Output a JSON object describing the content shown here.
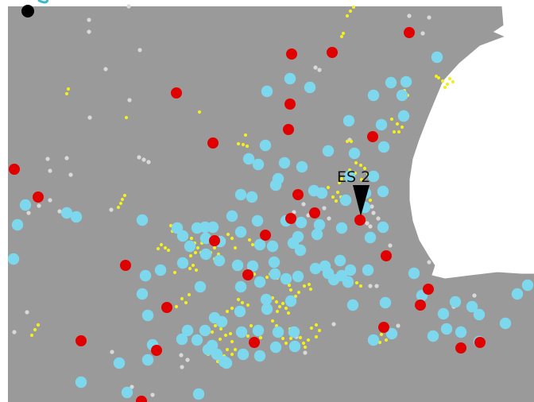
{
  "map": {
    "colors": {
      "land": "#9a9a9a",
      "water": "#ffffff",
      "outline": "#ffffff",
      "red_site": "#e00000",
      "blue_site": "#7dd8ee",
      "yellow_site": "#f2ee22",
      "white_site": "#d9d9d9",
      "marker": "#000000",
      "corner_mark": "#000000",
      "corner_accent": "#3ab7c9"
    },
    "marker": {
      "label": "ES 2",
      "icon": "triangle-pointer-icon"
    },
    "legend_visible": false
  }
}
